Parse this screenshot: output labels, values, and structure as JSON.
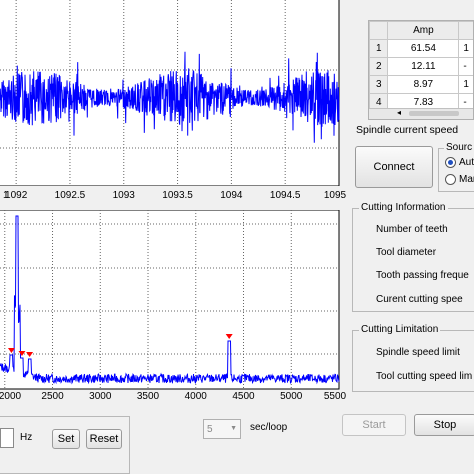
{
  "time_plot": {
    "x_ticks": [
      "1092",
      "1092.5",
      "1093",
      "1093.5",
      "1094",
      "1094.5",
      "1095"
    ],
    "x_range": [
      1091.85,
      1095
    ],
    "x_first_label_partial": "1",
    "signal_color": "#0000ff"
  },
  "spectrum_plot": {
    "x_ticks": [
      "2000",
      "2500",
      "3000",
      "3500",
      "4000",
      "4500",
      "5000",
      "5500"
    ],
    "x_range": [
      1950,
      5500
    ],
    "signal_color": "#0000ff",
    "marker_color": "#ff0000",
    "peak_markers_hz": [
      2070,
      2180,
      2260,
      4350
    ]
  },
  "amp_table": {
    "header": "Amp",
    "rows": [
      {
        "index": "1",
        "amp": "61.54",
        "next": "1"
      },
      {
        "index": "2",
        "amp": "12.11",
        "next": "-"
      },
      {
        "index": "3",
        "amp": "8.97",
        "next": "1"
      },
      {
        "index": "4",
        "amp": "7.83",
        "next": "-"
      }
    ]
  },
  "spindle": {
    "title": "Spindle current speed"
  },
  "connect": {
    "label": "Connect"
  },
  "source": {
    "title": "Sourc",
    "options": [
      "Aut",
      "Man"
    ],
    "selected_index": 0
  },
  "cutting_info": {
    "title": "Cutting Information",
    "items": [
      "Number of teeth",
      "Tool diameter",
      "Tooth passing freque",
      "Curent cutting spee"
    ]
  },
  "cutting_limit": {
    "title": "Cutting Limitation",
    "items": [
      "Spindle speed limit",
      "Tool cutting speed lim"
    ]
  },
  "bottom": {
    "hz_label": "Hz",
    "set_label": "Set",
    "reset_label": "Reset",
    "loop_value": "5",
    "loop_unit": "sec/loop",
    "start_label": "Start",
    "stop_label": "Stop"
  }
}
